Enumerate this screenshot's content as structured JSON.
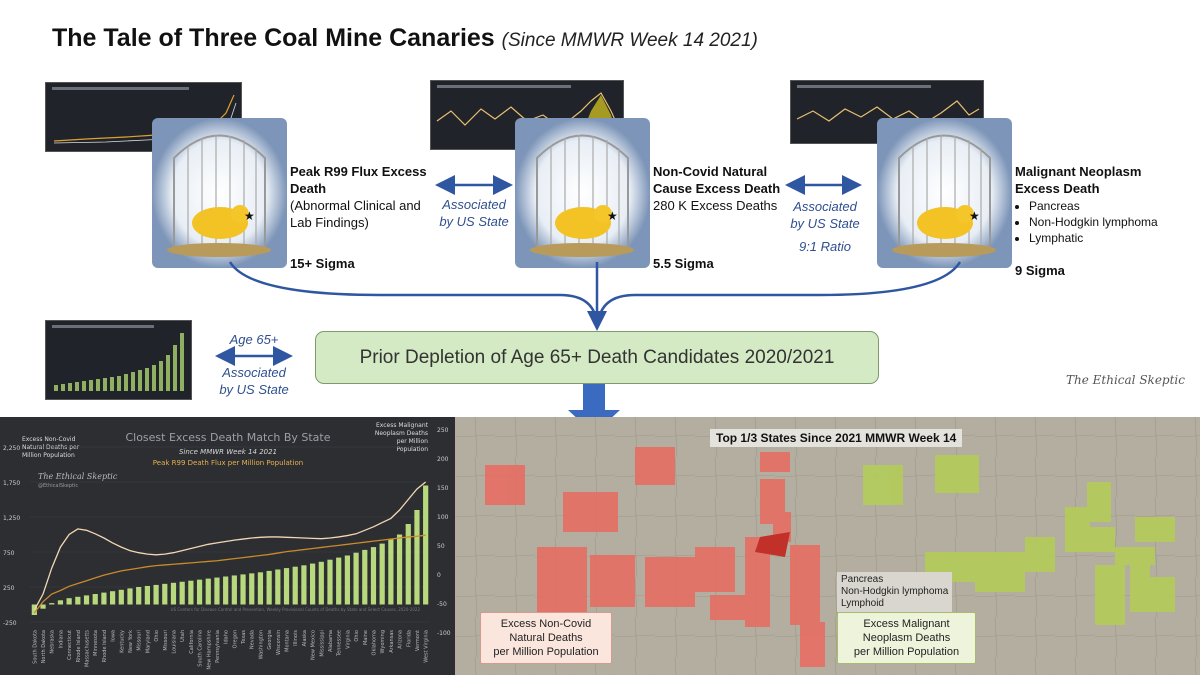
{
  "title": {
    "main": "The Tale of Three Coal Mine Canaries",
    "sub": "(Since MMWR Week 14 2021)"
  },
  "canaries": [
    {
      "label_bold": "Peak R99 Flux Excess Death",
      "label_extra": "(Abnormal Clinical and Lab Findings)",
      "sigma": "15+ Sigma"
    },
    {
      "label_bold": "Non-Covid Natural Cause Excess Death",
      "label_extra": "280 K Excess Deaths",
      "sigma": "5.5 Sigma"
    },
    {
      "label_bold": "Malignant Neoplasm Excess Death",
      "bullets": [
        "Pancreas",
        "Non-Hodgkin lymphoma",
        "Lymphatic"
      ],
      "sigma": "9 Sigma"
    }
  ],
  "associations": {
    "left": {
      "line1": "Associated",
      "line2": "by US State"
    },
    "right": {
      "line1": "Associated",
      "line2": "by US State",
      "ratio": "9:1 Ratio"
    },
    "age": {
      "line1": "Age 65+",
      "line2": "Associated",
      "line3": "by US State"
    }
  },
  "prior_depletion": "Prior Depletion of Age 65+ Death Candidates 2020/2021",
  "signature": "The Ethical Skeptic",
  "colors": {
    "arrow": "#2f56a0",
    "bar": "#b7d87c",
    "line_peach": "#f3d6b4",
    "line_orange": "#c98a2b",
    "map_red": "#ea6a5f",
    "map_green": "#b3cc5a",
    "box_green": "#d3eac4"
  },
  "chart_data": {
    "type": "bar",
    "title": "Closest Excess Death Match By State",
    "subtitle": "Since MMWR Week 14 2021",
    "series_label": "Peak R99 Death Flux per Million Population",
    "watermark": "The Ethical Skeptic",
    "watermark_handle": "@EthicalSkeptic",
    "y_left_label": "Excess Non-Covid Natural Deaths per Million Population",
    "y_right_label": "Excess Malignant Neoplasm Deaths per Million Population",
    "y_left_ticks": [
      "2,250",
      "1,750",
      "1,250",
      "750",
      "250",
      "-250"
    ],
    "y_right_ticks": [
      "250",
      "200",
      "150",
      "100",
      "50",
      "0",
      "-50",
      "-100"
    ],
    "ylim_left": [
      -250,
      2250
    ],
    "source": "US Centers for Disease Control and Prevention, Weekly Provisional Counts of Deaths by State and Select Causes, 2020-2022",
    "categories": [
      "South Dakota",
      "North Dakota",
      "Nebraska",
      "Indiana",
      "Connecticut",
      "Rhode Island",
      "Massachusetts",
      "Minnesota",
      "Rhode Island",
      "Iowa",
      "Kentucky",
      "New York",
      "Missouri",
      "Maryland",
      "Ohio",
      "Missouri",
      "Louisiana",
      "Utah",
      "California",
      "South Carolina",
      "New Hampshire",
      "Pennsylvania",
      "Idaho",
      "Oregon",
      "Texas",
      "Nevada",
      "Washington",
      "Georgia",
      "Wisconsin",
      "Montana",
      "Illinois",
      "Alaska",
      "New Mexico",
      "Mississippi",
      "Alabama",
      "Tennessee",
      "Virginia",
      "Ohio",
      "Maine",
      "Oklahoma",
      "Wyoming",
      "Arkansas",
      "Arizona",
      "Florida",
      "Vermont",
      "West Virginia"
    ],
    "values": [
      -150,
      -60,
      20,
      60,
      90,
      110,
      130,
      150,
      170,
      190,
      210,
      230,
      250,
      265,
      280,
      295,
      310,
      325,
      340,
      355,
      370,
      385,
      400,
      415,
      430,
      445,
      460,
      480,
      500,
      520,
      540,
      560,
      585,
      610,
      640,
      670,
      700,
      740,
      780,
      820,
      870,
      930,
      1000,
      1150,
      1350,
      1700
    ],
    "peak_line": [
      -120,
      40,
      150,
      200,
      260,
      300,
      340,
      380,
      420,
      450,
      480,
      500,
      520,
      540,
      555,
      565,
      575,
      585,
      595,
      605,
      615,
      625,
      640,
      655,
      670,
      685,
      700,
      715,
      735,
      755,
      770,
      785,
      800,
      815,
      830,
      845,
      860,
      875,
      890,
      905,
      920,
      935,
      950,
      965,
      975,
      990
    ],
    "neoplasm_line": [
      -80,
      150,
      520,
      820,
      1000,
      1080,
      1060,
      1010,
      950,
      880,
      820,
      770,
      740,
      720,
      710,
      720,
      740,
      770,
      800,
      830,
      860,
      880,
      900,
      920,
      935,
      950,
      960,
      965,
      965,
      960,
      955,
      950,
      945,
      940,
      950,
      965,
      985,
      1010,
      1060,
      1110,
      1170,
      1230,
      1350,
      1500,
      1650,
      1750
    ]
  },
  "map": {
    "title": "Top 1/3 States Since 2021 MMWR Week 14",
    "legend_left": [
      "Excess Non-Covid",
      "Natural Deaths",
      "per Million Population"
    ],
    "legend_right": [
      "Excess Malignant",
      "Neoplasm Deaths",
      "per Million Population"
    ],
    "neoplasm_list": [
      "Pancreas",
      "Non-Hodgkin lymphoma",
      "Lymphoid"
    ]
  }
}
